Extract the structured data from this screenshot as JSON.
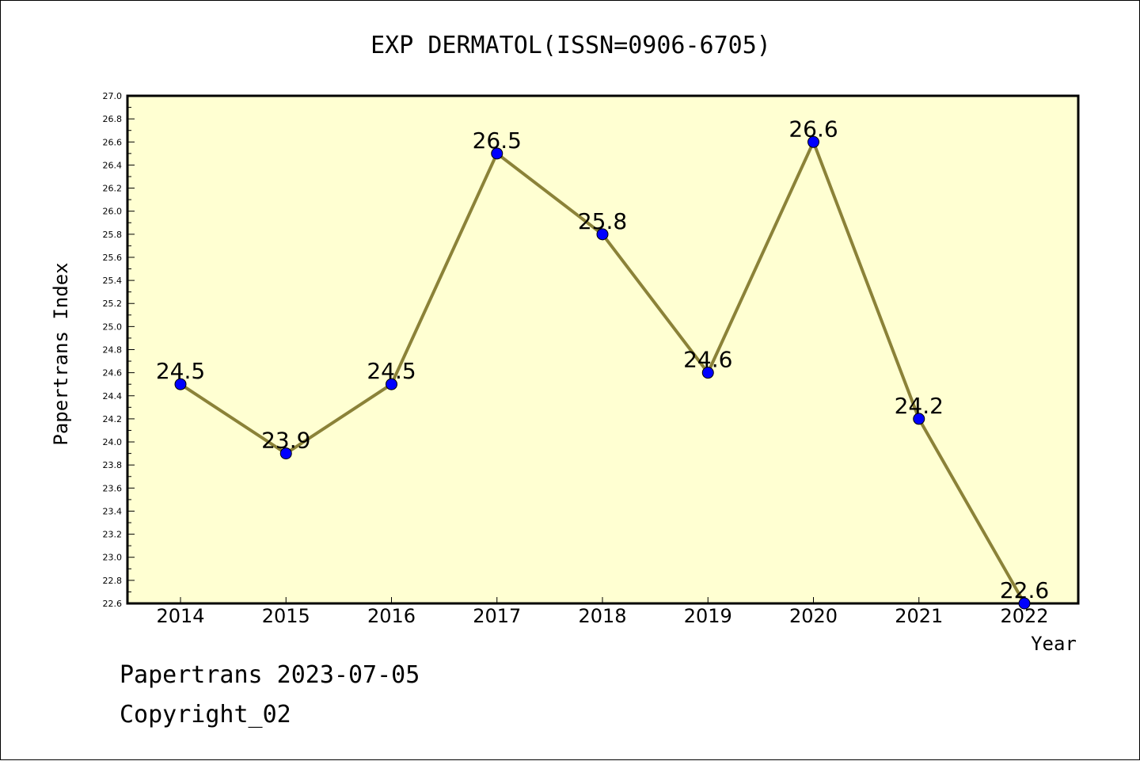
{
  "chart_data": {
    "type": "line",
    "title": "EXP DERMATOL(ISSN=0906-6705)",
    "xlabel": "Year",
    "ylabel": "Papertrans Index",
    "categories": [
      "2014",
      "2015",
      "2016",
      "2017",
      "2018",
      "2019",
      "2020",
      "2021",
      "2022"
    ],
    "series": [
      {
        "values": [
          24.5,
          23.9,
          24.5,
          26.5,
          25.8,
          24.6,
          26.6,
          24.2,
          22.6
        ],
        "data_labels": [
          "24.5",
          "23.9",
          "24.5",
          "26.5",
          "25.8",
          "24.6",
          "26.6",
          "24.2",
          "22.6"
        ]
      }
    ],
    "ylim": [
      22.6,
      27.0
    ],
    "yticks": [
      "22.6",
      "22.8",
      "23.0",
      "23.2",
      "23.4",
      "23.6",
      "23.8",
      "24.0",
      "24.2",
      "24.4",
      "24.6",
      "24.8",
      "25.0",
      "25.2",
      "25.4",
      "25.6",
      "25.8",
      "26.0",
      "26.2",
      "26.4",
      "26.6",
      "26.8",
      "27.0"
    ],
    "grid": false,
    "colors": {
      "plot_background": "#ffffd2",
      "line": "#8b8238",
      "marker": "#0000ff"
    }
  },
  "footer": {
    "line1": "Papertrans 2023-07-05",
    "line2": "Copyright_02"
  }
}
